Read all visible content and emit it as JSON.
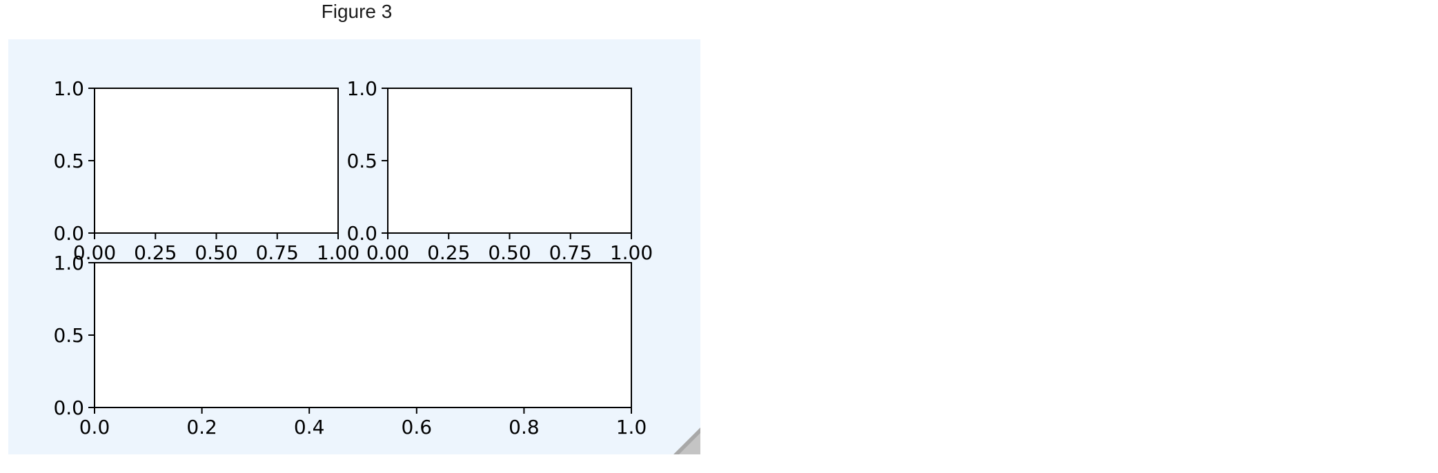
{
  "window": {
    "title": "Figure 3"
  },
  "colors": {
    "canvas_background": "#edf5fd",
    "axes_background": "#ffffff",
    "spine": "#000000",
    "resize_grip": "#a8a8a8"
  },
  "icons": {
    "resize_grip": "resize-grip-icon"
  },
  "chart_data": [
    {
      "type": "line",
      "title": "",
      "xlabel": "",
      "ylabel": "",
      "xlim": [
        0.0,
        1.0
      ],
      "ylim": [
        0.0,
        1.0
      ],
      "x_ticks": [
        "0.00",
        "0.25",
        "0.50",
        "0.75",
        "1.00"
      ],
      "y_ticks": [
        "0.0",
        "0.5",
        "1.0"
      ],
      "series": [],
      "grid": false
    },
    {
      "type": "line",
      "title": "",
      "xlabel": "",
      "ylabel": "",
      "xlim": [
        0.0,
        1.0
      ],
      "ylim": [
        0.0,
        1.0
      ],
      "x_ticks": [
        "0.00",
        "0.25",
        "0.50",
        "0.75",
        "1.00"
      ],
      "y_ticks": [
        "0.0",
        "0.5",
        "1.0"
      ],
      "series": [],
      "grid": false
    },
    {
      "type": "line",
      "title": "",
      "xlabel": "",
      "ylabel": "",
      "xlim": [
        0.0,
        1.0
      ],
      "ylim": [
        0.0,
        1.0
      ],
      "x_ticks": [
        "0.0",
        "0.2",
        "0.4",
        "0.6",
        "0.8",
        "1.0"
      ],
      "y_ticks": [
        "0.0",
        "0.5",
        "1.0"
      ],
      "series": [],
      "grid": false
    }
  ]
}
